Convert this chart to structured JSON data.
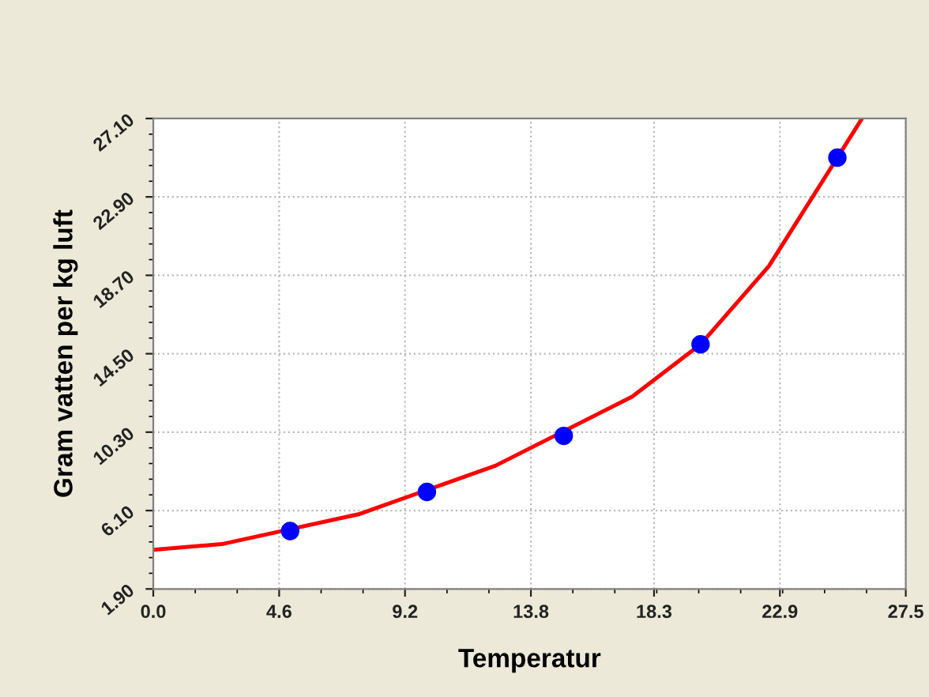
{
  "chart_data": {
    "type": "scatter",
    "xlabel": "Temperatur",
    "ylabel": "Gram vatten per kg luft",
    "xlim": [
      0.0,
      27.5
    ],
    "xticks": [
      {
        "value": 0.0,
        "label": "0.0"
      },
      4.6,
      9.2,
      13.8,
      18.3,
      22.9,
      27.5
    ],
    "ylim": [
      1.9,
      27.1
    ],
    "yticks": [
      {
        "value": 1.9,
        "label": "1.90"
      },
      {
        "value": 6.1,
        "label": "6.10"
      },
      {
        "value": 10.3,
        "label": "10.30"
      },
      {
        "value": 14.5,
        "label": "14.50"
      },
      {
        "value": 18.7,
        "label": "18.70"
      },
      {
        "value": 22.9,
        "label": "22.90"
      },
      {
        "value": 27.1,
        "label": "27.10"
      }
    ],
    "grid": true,
    "legend": false,
    "series": [
      {
        "type": "line",
        "color": "#ff0000",
        "marker": "none",
        "line_style": "solid",
        "x": [
          0,
          2.5,
          7.5,
          12.5,
          17.5,
          20,
          22.5,
          25,
          25.9
        ],
        "values": [
          4.0,
          4.3,
          5.9,
          8.5,
          12.2,
          15.0,
          19.2,
          25.0,
          27.1
        ]
      },
      {
        "color": "#0000ff",
        "marker": "circle",
        "x": [
          5,
          10,
          15,
          20,
          25
        ],
        "values": [
          5.0,
          7.1,
          10.1,
          15.0,
          25.0
        ]
      }
    ]
  }
}
